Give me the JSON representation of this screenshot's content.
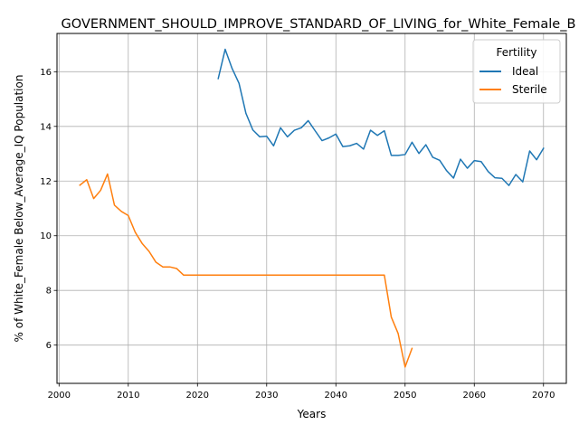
{
  "chart_data": {
    "type": "line",
    "title": "GOVERNMENT_SHOULD_IMPROVE_STANDARD_OF_LIVING_for_White_Female_B",
    "xlabel": "Years",
    "ylabel": "% of White_Female Below_Average_IQ Population",
    "xlim": [
      1999.7,
      2073.3
    ],
    "ylim": [
      4.6,
      17.4
    ],
    "x_ticks": [
      2000,
      2010,
      2020,
      2030,
      2040,
      2050,
      2060,
      2070
    ],
    "y_ticks": [
      6,
      8,
      10,
      12,
      14,
      16
    ],
    "grid": true,
    "legend": {
      "title": "Fertility",
      "position": "top-right"
    },
    "series": [
      {
        "name": "Ideal",
        "color": "#1f77b4",
        "x": [
          2023,
          2024,
          2025,
          2026,
          2027,
          2028,
          2029,
          2030,
          2031,
          2032,
          2033,
          2034,
          2035,
          2036,
          2037,
          2038,
          2039,
          2040,
          2041,
          2042,
          2043,
          2044,
          2045,
          2046,
          2047,
          2048,
          2049,
          2050,
          2051,
          2052,
          2053,
          2054,
          2055,
          2056,
          2057,
          2058,
          2059,
          2060,
          2061,
          2062,
          2063,
          2064,
          2065,
          2066,
          2067,
          2068,
          2069,
          2070
        ],
        "values": [
          15.75,
          16.82,
          16.12,
          15.58,
          14.48,
          13.87,
          13.62,
          13.64,
          13.29,
          13.95,
          13.62,
          13.86,
          13.95,
          14.21,
          13.84,
          13.48,
          13.58,
          13.72,
          13.26,
          13.29,
          13.38,
          13.17,
          13.86,
          13.67,
          13.84,
          12.94,
          12.94,
          12.97,
          13.42,
          13.01,
          13.33,
          12.87,
          12.76,
          12.38,
          12.11,
          12.8,
          12.47,
          12.75,
          12.71,
          12.35,
          12.12,
          12.1,
          11.84,
          12.24,
          11.97,
          13.1,
          12.78,
          13.2
        ]
      },
      {
        "name": "Sterile",
        "color": "#ff7f0e",
        "x": [
          2003,
          2004,
          2005,
          2006,
          2007,
          2008,
          2009,
          2010,
          2011,
          2012,
          2013,
          2014,
          2015,
          2016,
          2017,
          2018,
          2019,
          2020,
          2021,
          2022,
          2023,
          2024,
          2025,
          2026,
          2027,
          2028,
          2029,
          2030,
          2031,
          2032,
          2033,
          2034,
          2035,
          2036,
          2037,
          2038,
          2039,
          2040,
          2041,
          2042,
          2043,
          2044,
          2045,
          2046,
          2047,
          2048,
          2049,
          2050,
          2051
        ],
        "values": [
          11.85,
          12.05,
          11.36,
          11.66,
          12.26,
          11.12,
          10.89,
          10.74,
          10.13,
          9.72,
          9.43,
          9.03,
          8.86,
          8.86,
          8.8,
          8.56,
          8.56,
          8.56,
          8.56,
          8.56,
          8.56,
          8.56,
          8.56,
          8.56,
          8.56,
          8.56,
          8.56,
          8.56,
          8.56,
          8.56,
          8.56,
          8.56,
          8.56,
          8.56,
          8.56,
          8.56,
          8.56,
          8.56,
          8.56,
          8.56,
          8.56,
          8.56,
          8.56,
          8.56,
          8.56,
          7.03,
          6.42,
          5.2,
          5.88
        ]
      }
    ]
  }
}
